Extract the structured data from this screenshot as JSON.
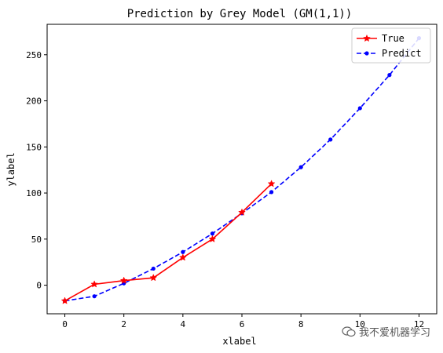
{
  "chart_data": {
    "type": "line",
    "title": "Prediction by Grey Model (GM(1,1))",
    "xlabel": "xlabel",
    "ylabel": "ylabel",
    "xlim": [
      -0.6,
      12.6
    ],
    "ylim": [
      -31,
      283
    ],
    "xticks": [
      0,
      2,
      4,
      6,
      8,
      10,
      12
    ],
    "yticks": [
      0,
      50,
      100,
      150,
      200,
      250
    ],
    "legend": "top-right",
    "grid": false,
    "series": [
      {
        "name": "True",
        "color": "#ff0000",
        "linestyle": "solid",
        "marker": "star",
        "x": [
          0,
          1,
          2,
          3,
          4,
          5,
          6,
          7
        ],
        "y": [
          -17,
          1,
          5,
          8,
          30,
          50,
          79,
          110
        ]
      },
      {
        "name": "Predict",
        "color": "#0000ff",
        "linestyle": "dashed",
        "marker": "dot",
        "x": [
          0,
          1,
          2,
          3,
          4,
          5,
          6,
          7,
          8,
          9,
          10,
          11,
          12
        ],
        "y": [
          -17,
          -12,
          2,
          18,
          36,
          56,
          78,
          101,
          128,
          158,
          192,
          228,
          268
        ]
      }
    ]
  },
  "watermark": {
    "icon": "wechat-icon",
    "text": "我不爱机器学习"
  }
}
